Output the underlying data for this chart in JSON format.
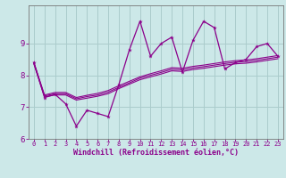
{
  "xlabel": "Windchill (Refroidissement éolien,°C)",
  "x_values": [
    0,
    1,
    2,
    3,
    4,
    5,
    6,
    7,
    8,
    9,
    10,
    11,
    12,
    13,
    14,
    15,
    16,
    17,
    18,
    19,
    20,
    21,
    22,
    23
  ],
  "main_line": [
    8.4,
    7.3,
    7.4,
    7.1,
    6.4,
    6.9,
    6.8,
    6.7,
    7.7,
    8.8,
    9.7,
    8.6,
    9.0,
    9.2,
    8.1,
    9.1,
    9.7,
    9.5,
    8.2,
    8.4,
    8.5,
    8.9,
    9.0,
    8.6
  ],
  "line2": [
    8.35,
    7.32,
    7.38,
    7.38,
    7.22,
    7.28,
    7.34,
    7.42,
    7.58,
    7.72,
    7.86,
    7.95,
    8.04,
    8.14,
    8.12,
    8.18,
    8.22,
    8.27,
    8.32,
    8.36,
    8.38,
    8.42,
    8.47,
    8.52
  ],
  "line3": [
    8.38,
    7.35,
    7.42,
    7.42,
    7.26,
    7.33,
    7.38,
    7.47,
    7.62,
    7.76,
    7.91,
    8.0,
    8.09,
    8.19,
    8.17,
    8.23,
    8.27,
    8.32,
    8.37,
    8.41,
    8.43,
    8.47,
    8.52,
    8.57
  ],
  "line4": [
    8.4,
    7.38,
    7.46,
    7.46,
    7.3,
    7.37,
    7.43,
    7.52,
    7.67,
    7.81,
    7.95,
    8.05,
    8.14,
    8.24,
    8.22,
    8.28,
    8.32,
    8.37,
    8.42,
    8.46,
    8.48,
    8.52,
    8.57,
    8.62
  ],
  "color": "#8B008B",
  "bg_color": "#cce8e8",
  "grid_color": "#aacccc",
  "ylim": [
    6.0,
    10.2
  ],
  "xlim": [
    -0.5,
    23.5
  ],
  "yticks": [
    6,
    7,
    8,
    9
  ],
  "xticks": [
    0,
    1,
    2,
    3,
    4,
    5,
    6,
    7,
    8,
    9,
    10,
    11,
    12,
    13,
    14,
    15,
    16,
    17,
    18,
    19,
    20,
    21,
    22,
    23
  ]
}
